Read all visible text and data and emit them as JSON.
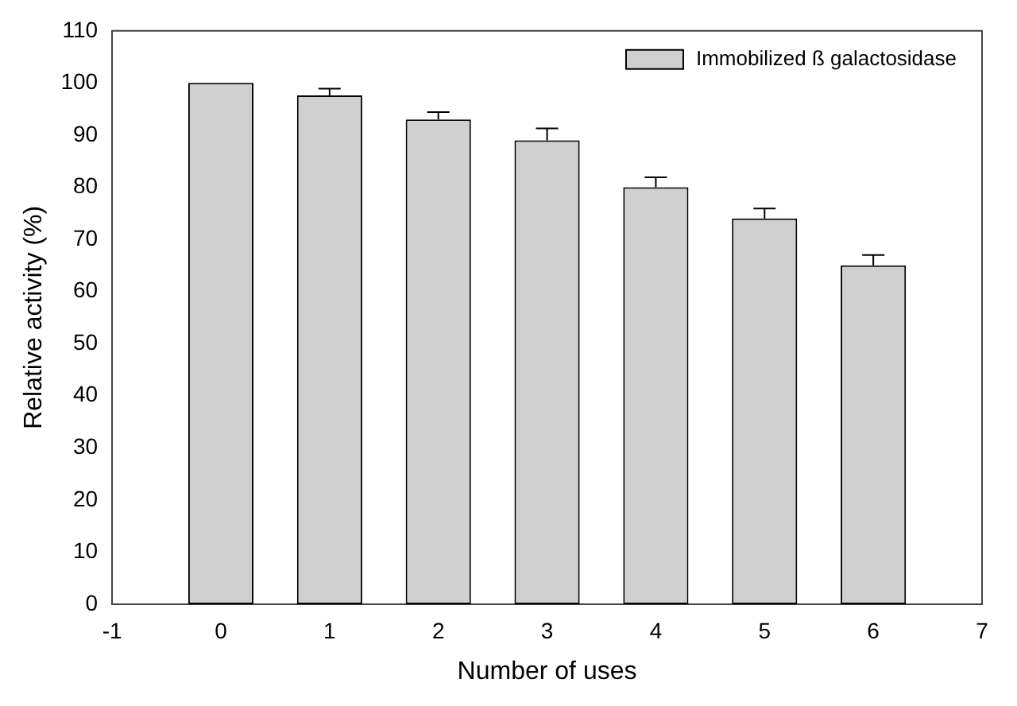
{
  "chart_data": {
    "type": "bar",
    "xlabel": "Number of uses",
    "ylabel": "Relative activity (%)",
    "x": [
      0,
      1,
      2,
      3,
      4,
      5,
      6
    ],
    "series": [
      {
        "name": "Immobilized ß galactosidase",
        "color": "#d0d0d0",
        "values": [
          100,
          97.6,
          93,
          89,
          80,
          74,
          65
        ],
        "errors": [
          null,
          [
            97.6,
            98.9
          ],
          [
            93,
            94.4
          ],
          [
            89,
            91.3
          ],
          [
            80,
            81.9
          ],
          [
            74,
            75.9
          ],
          [
            65,
            67
          ]
        ]
      }
    ],
    "xlim": [
      -1,
      7
    ],
    "xticks": [
      -1,
      0,
      1,
      2,
      3,
      4,
      5,
      6,
      7
    ],
    "ylim": [
      0,
      110
    ],
    "yticks": [
      0,
      10,
      20,
      30,
      40,
      50,
      60,
      70,
      80,
      90,
      100,
      110
    ],
    "grid": false,
    "legend": "top right"
  }
}
